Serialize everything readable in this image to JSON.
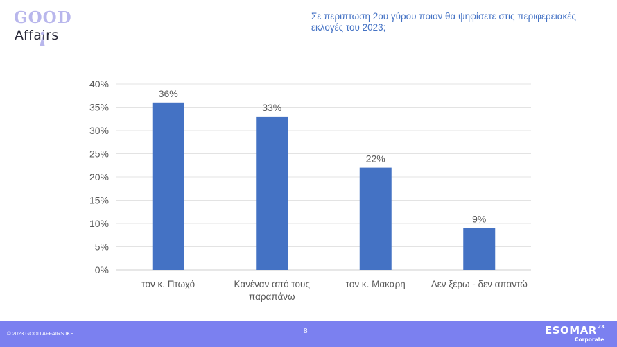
{
  "header": {
    "logo_top": "GOOD",
    "logo_bottom": "Affairs",
    "question": "Σε περιπτωση 2ου γύρου ποιον θα ψηφίσετε στις περιφερειακές εκλογές του 2023;"
  },
  "footer": {
    "copyright": "© 2023 GOOD AFFAIRS IKE",
    "page_number": "8",
    "esomar_name": "ESOMAR",
    "esomar_year": "23",
    "esomar_sub": "Corporate",
    "background_color": "#7b80f0"
  },
  "chart_data": {
    "type": "bar",
    "categories": [
      [
        "τον κ. Πτωχό"
      ],
      [
        "Κανέναν από τους",
        "παραπάνω"
      ],
      [
        "τον κ. Μακαρη"
      ],
      [
        "Δεν ξέρω - δεν απαντώ"
      ]
    ],
    "values": [
      36,
      33,
      22,
      9
    ],
    "data_labels": [
      "36%",
      "33%",
      "22%",
      "9%"
    ],
    "y_ticks": [
      "0%",
      "5%",
      "10%",
      "15%",
      "20%",
      "25%",
      "30%",
      "35%",
      "40%"
    ],
    "ylim": [
      0,
      40
    ],
    "grid": true,
    "legend": false,
    "bar_color": "#4472c4",
    "grid_color": "#e3e3e3",
    "label_color": "#595959"
  }
}
